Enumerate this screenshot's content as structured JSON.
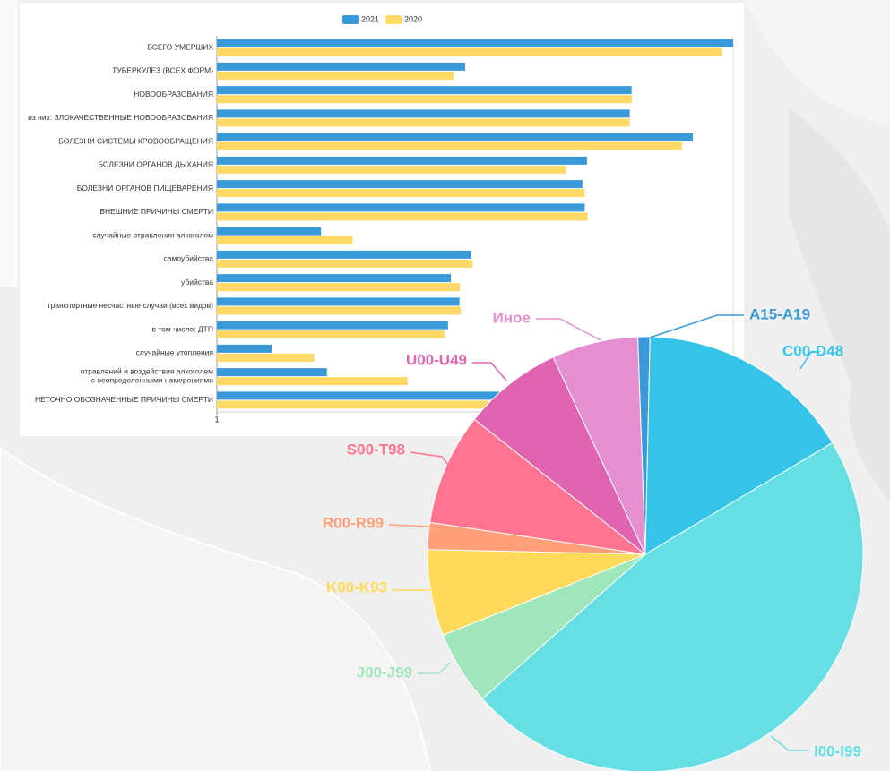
{
  "chart_data": [
    {
      "type": "bar",
      "orientation": "horizontal",
      "log_scale": true,
      "legend": "top",
      "categories": [
        "ВСЕГО УМЕРШИХ",
        "ТУБЕРКУЛЕЗ (ВСЕХ ФОРМ)",
        "НОВООБРАЗОВАНИЯ",
        "из них: ЗЛОКАЧЕСТВЕННЫЕ НОВООБРАЗОВАНИЯ",
        "БОЛЕЗНИ СИСТЕМЫ КРОВООБРАЩЕНИЯ",
        "БОЛЕЗНИ ОРГАНОВ ДЫХАНИЯ",
        "БОЛЕЗНИ ОРГАНОВ ПИЩЕВАРЕНИЯ",
        "ВНЕШНИЕ ПРИЧИНЫ СМЕРТИ",
        "случайные отравления алкоголем",
        "самоубийства",
        "убийства",
        "транспортные несчастные случаи (всех видов)",
        "в том числе: ДТП",
        "случайные утопления",
        "отравлений и воздействия алкоголем\nс неопределенными намерениями",
        "НЕТОЧНО ОБОЗНАЧЕННЫЕ ПРИЧИНЫ СМЕРТИ"
      ],
      "series": [
        {
          "name": "2021",
          "color": "#3a9ad9",
          "values": [
            30000,
            142,
            3950,
            3800,
            13400,
            1620,
            1480,
            1550,
            8,
            160,
            107,
            127,
            101,
            3,
            9,
            300
          ]
        },
        {
          "name": "2020",
          "color": "#ffd966",
          "values": [
            24000,
            113,
            3960,
            3810,
            10800,
            1070,
            1550,
            1640,
            15,
            165,
            128,
            130,
            94,
            7,
            45,
            226
          ]
        }
      ],
      "xlim": [
        1,
        30000
      ],
      "xticks": [
        1
      ]
    },
    {
      "type": "pie",
      "categories": [
        "A15-A19",
        "C00-D48",
        "I00-I99",
        "J00-J99",
        "K00-K93",
        "R00-R99",
        "S00-T98",
        "U00-U49",
        "Иное"
      ],
      "values": [
        0.9,
        16.1,
        47.0,
        5.5,
        6.4,
        2.0,
        8.3,
        7.4,
        6.4
      ],
      "colors": [
        "#3a9ad9",
        "#35c4e8",
        "#66dfe4",
        "#a0e6bb",
        "#ffd95a",
        "#ffa07a",
        "#ff7490",
        "#e064b0",
        "#e58fd0"
      ]
    }
  ]
}
